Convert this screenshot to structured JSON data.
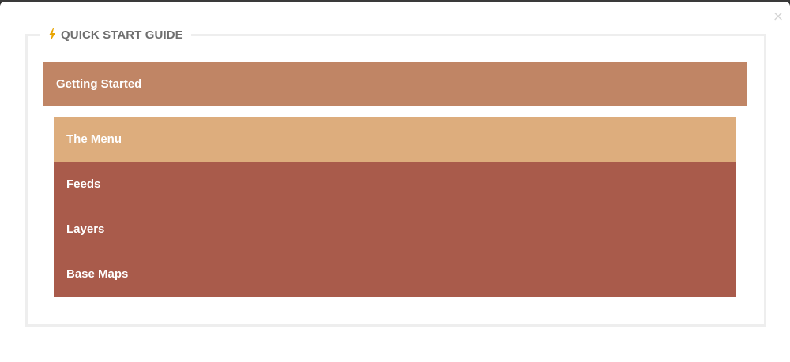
{
  "modal": {
    "close_label": "×"
  },
  "guide": {
    "title": "QUICK START GUIDE",
    "icon": "lightning-bolt-icon",
    "icon_color": "#e8a400"
  },
  "section": {
    "label": "Getting Started",
    "color": "#c08565"
  },
  "items": [
    {
      "label": "The Menu",
      "active": true
    },
    {
      "label": "Feeds",
      "active": false
    },
    {
      "label": "Layers",
      "active": false
    },
    {
      "label": "Base Maps",
      "active": false
    }
  ],
  "colors": {
    "active_item": "#ddad7d",
    "inactive_item": "#a95b4b",
    "border": "#eeeeee",
    "title_text": "#6f6f6f"
  }
}
